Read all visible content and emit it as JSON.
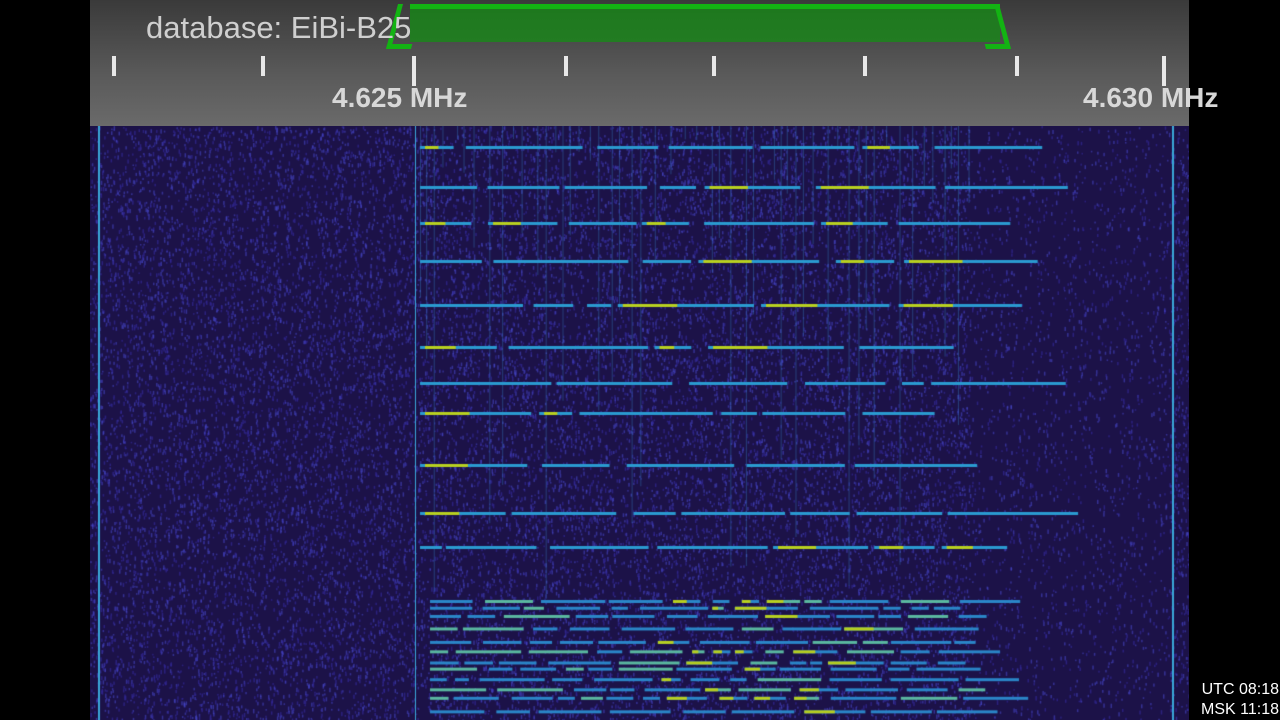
{
  "scale": {
    "database_label": "database: EiBi-B25",
    "freq_labels": [
      "4.625 MHz",
      "4.630 MHz"
    ]
  },
  "colors": {
    "passband": "#13b313",
    "waterfall_bg": "#1c1248",
    "signal": "#2a9ad0",
    "signal_peak": "#b8d020"
  },
  "clock": {
    "utc": "UTC 08:18",
    "msk": "MSK 11:18"
  }
}
